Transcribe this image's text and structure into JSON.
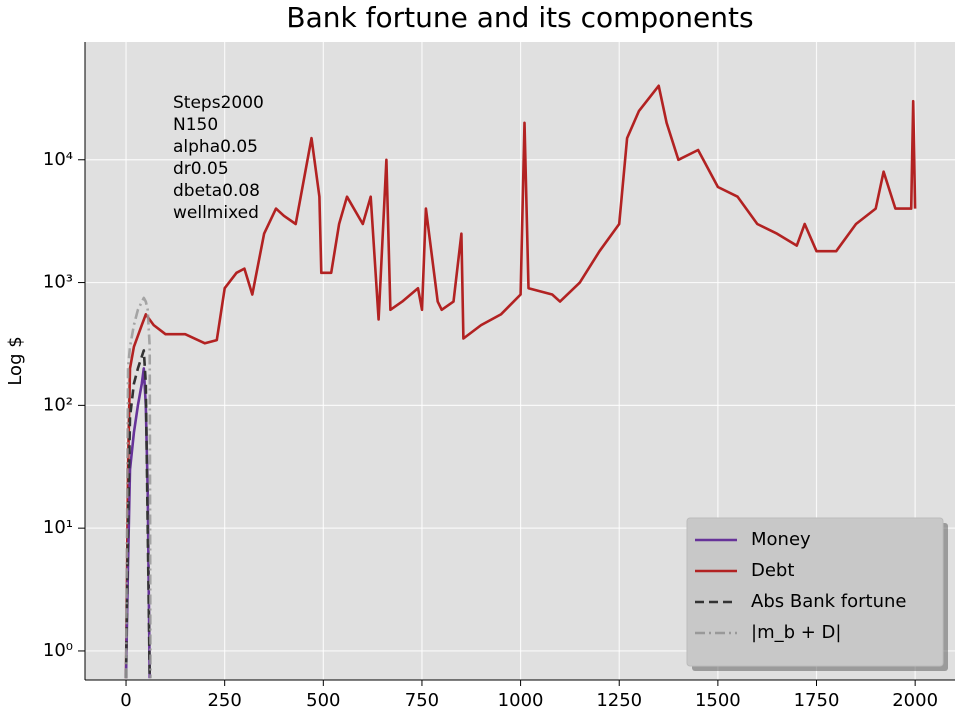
{
  "chart_data": {
    "type": "line",
    "title": "Bank fortune and its components",
    "y_label": "Log $",
    "annotation": [
      "Steps2000",
      "N150",
      "alpha0.05",
      "dr0.05",
      "dbeta0.08",
      "wellmixed"
    ],
    "log_y": true,
    "grid": true,
    "legend": "lower right",
    "xlim": [
      -104,
      2101
    ],
    "ylim": [
      0.58,
      91000
    ],
    "xticks": [
      0,
      250,
      500,
      750,
      1000,
      1250,
      1500,
      1750,
      2000
    ],
    "yticks": [
      {
        "value": 1,
        "label": "10⁰"
      },
      {
        "value": 10,
        "label": "10¹"
      },
      {
        "value": 100,
        "label": "10²"
      },
      {
        "value": 1000,
        "label": "10³"
      },
      {
        "value": 10000,
        "label": "10⁴"
      }
    ],
    "series": [
      {
        "name": "Debt",
        "color": "#b22222",
        "dash": "solid",
        "x": [
          0,
          5,
          10,
          20,
          40,
          50,
          70,
          100,
          150,
          200,
          230,
          250,
          280,
          300,
          320,
          350,
          380,
          400,
          430,
          470,
          490,
          495,
          520,
          540,
          560,
          600,
          620,
          640,
          660,
          670,
          700,
          740,
          750,
          760,
          790,
          800,
          830,
          850,
          855,
          900,
          950,
          1000,
          1010,
          1020,
          1080,
          1100,
          1150,
          1200,
          1250,
          1270,
          1300,
          1350,
          1370,
          1400,
          1450,
          1500,
          1550,
          1600,
          1650,
          1700,
          1720,
          1750,
          1800,
          1850,
          1900,
          1920,
          1950,
          1990,
          1995,
          2000
        ],
        "values": [
          0.6,
          30,
          200,
          300,
          450,
          550,
          450,
          380,
          380,
          320,
          340,
          900,
          1200,
          1300,
          800,
          2500,
          4000,
          3500,
          3000,
          15000,
          5000,
          1200,
          1200,
          3000,
          5000,
          3000,
          5000,
          500,
          10000,
          600,
          700,
          900,
          600,
          4000,
          700,
          600,
          700,
          2500,
          350,
          450,
          550,
          800,
          20000,
          900,
          800,
          700,
          1000,
          1800,
          3000,
          15000,
          25000,
          40000,
          20000,
          10000,
          12000,
          6000,
          5000,
          3000,
          2500,
          2000,
          3000,
          1800,
          1800,
          3000,
          4000,
          8000,
          4000,
          4000,
          30000,
          4000
        ]
      },
      {
        "name": "Money",
        "color": "#663399",
        "dash": "solid",
        "x": [
          0,
          5,
          10,
          20,
          30,
          40,
          45,
          50,
          55,
          60
        ],
        "values": [
          0.6,
          5,
          30,
          60,
          100,
          150,
          200,
          100,
          20,
          0.6
        ]
      },
      {
        "name": "Abs Bank fortune",
        "color": "#333333",
        "dash": "dashed",
        "x": [
          0,
          5,
          10,
          20,
          30,
          40,
          45,
          50,
          55,
          60
        ],
        "values": [
          0.6,
          10,
          80,
          150,
          200,
          250,
          280,
          150,
          10,
          0.6
        ]
      },
      {
        "name": "|m_b + D|",
        "color": "#999999",
        "dash": "dashdot",
        "x": [
          0,
          5,
          10,
          20,
          30,
          45,
          50,
          55,
          60,
          62
        ],
        "values": [
          0.6,
          200,
          300,
          450,
          600,
          750,
          700,
          600,
          300,
          0.6
        ]
      }
    ],
    "legend_order": [
      1,
      0,
      2,
      3
    ]
  }
}
